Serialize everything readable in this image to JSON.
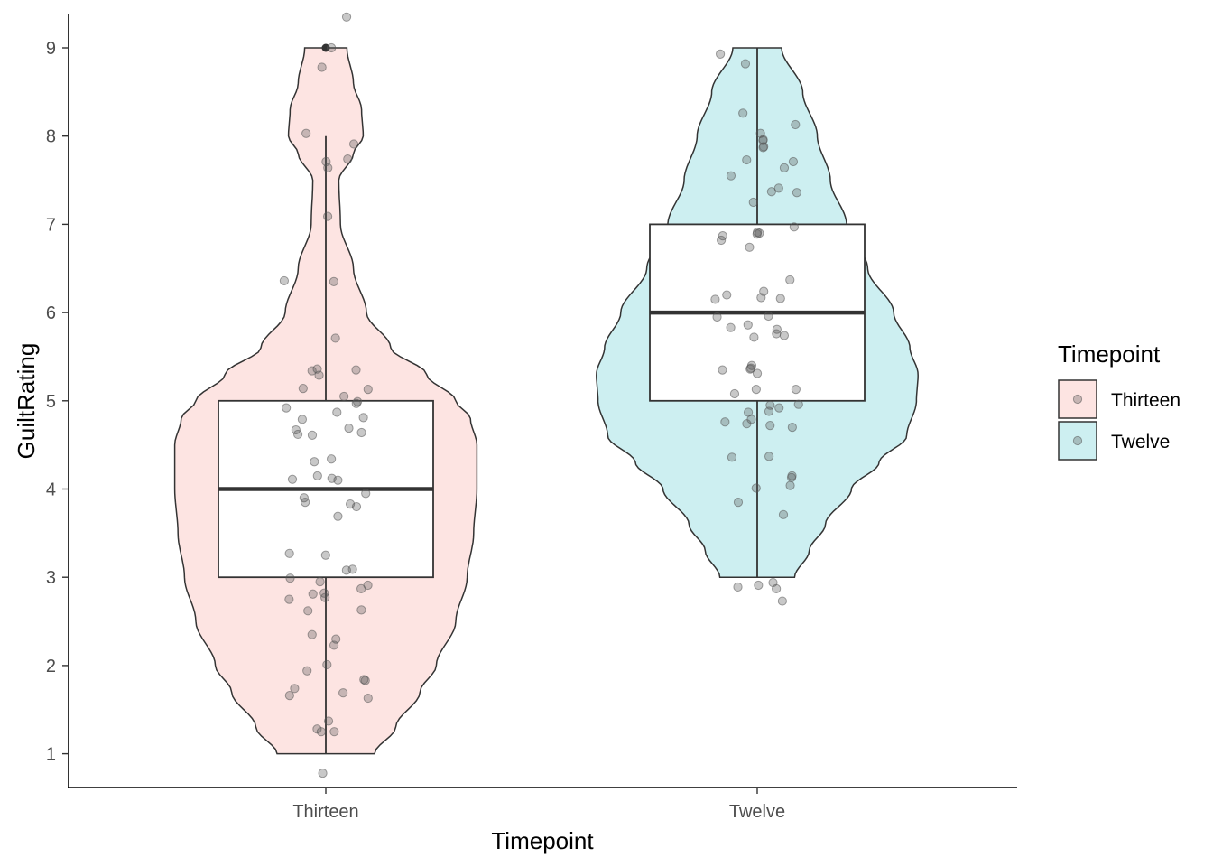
{
  "chart_data": {
    "type": "violin",
    "xlabel": "Timepoint",
    "ylabel": "GuiltRating",
    "ylim": [
      0.6,
      9.4
    ],
    "yticks": [
      1,
      2,
      3,
      4,
      5,
      6,
      7,
      8,
      9
    ],
    "categories": [
      "Thirteen",
      "Twelve"
    ],
    "legend": {
      "title": "Timepoint",
      "position": "right",
      "items": [
        {
          "label": "Thirteen",
          "color": "#F8766D"
        },
        {
          "label": "Twelve",
          "color": "#00BFC4"
        }
      ]
    },
    "colors": {
      "Thirteen": "#F8766D",
      "Twelve": "#00BFC4",
      "fill_Thirteen": "#fde4e2",
      "fill_Twelve": "#cdeff1",
      "outline": "#333333",
      "point": "#555555"
    },
    "series": [
      {
        "name": "Thirteen",
        "box": {
          "min": 1,
          "q1": 3,
          "median": 4,
          "q3": 5,
          "max": 8
        },
        "outliers": [
          9
        ],
        "violin_profile": [
          [
            1.0,
            0.3
          ],
          [
            1.3,
            0.43
          ],
          [
            1.7,
            0.58
          ],
          [
            2.0,
            0.68
          ],
          [
            2.5,
            0.8
          ],
          [
            3.0,
            0.87
          ],
          [
            3.5,
            0.91
          ],
          [
            4.0,
            0.93
          ],
          [
            4.5,
            0.93
          ],
          [
            4.8,
            0.89
          ],
          [
            5.0,
            0.8
          ],
          [
            5.3,
            0.62
          ],
          [
            5.6,
            0.4
          ],
          [
            6.0,
            0.25
          ],
          [
            6.5,
            0.17
          ],
          [
            7.0,
            0.09
          ],
          [
            7.5,
            0.08
          ],
          [
            7.8,
            0.17
          ],
          [
            8.0,
            0.23
          ],
          [
            8.3,
            0.22
          ],
          [
            8.6,
            0.17
          ],
          [
            9.0,
            0.13
          ]
        ],
        "points": [
          9.35,
          9.0,
          8.78,
          8.03,
          7.91,
          7.74,
          7.71,
          7.64,
          7.09,
          6.36,
          6.35,
          5.71,
          5.36,
          5.35,
          5.34,
          5.29,
          5.14,
          5.13,
          5.05,
          4.99,
          4.97,
          4.92,
          4.87,
          4.81,
          4.79,
          4.69,
          4.67,
          4.64,
          4.62,
          4.61,
          4.34,
          4.31,
          4.15,
          4.12,
          4.11,
          4.1,
          3.95,
          3.9,
          3.85,
          3.83,
          3.8,
          3.69,
          3.27,
          3.25,
          3.09,
          3.08,
          2.99,
          2.95,
          2.91,
          2.87,
          2.82,
          2.81,
          2.77,
          2.75,
          2.63,
          2.62,
          2.35,
          2.3,
          2.23,
          2.01,
          1.94,
          1.84,
          1.83,
          1.74,
          1.69,
          1.66,
          1.63,
          1.37,
          1.28,
          1.25,
          1.25,
          0.78
        ]
      },
      {
        "name": "Twelve",
        "box": {
          "min": 3,
          "q1": 5,
          "median": 6,
          "q3": 7,
          "max": 9
        },
        "outliers": [],
        "violin_profile": [
          [
            3.0,
            0.23
          ],
          [
            3.3,
            0.32
          ],
          [
            3.6,
            0.42
          ],
          [
            4.0,
            0.58
          ],
          [
            4.3,
            0.75
          ],
          [
            4.6,
            0.92
          ],
          [
            5.0,
            0.98
          ],
          [
            5.3,
            0.99
          ],
          [
            5.6,
            0.94
          ],
          [
            6.0,
            0.84
          ],
          [
            6.5,
            0.68
          ],
          [
            7.0,
            0.55
          ],
          [
            7.5,
            0.45
          ],
          [
            8.0,
            0.37
          ],
          [
            8.5,
            0.28
          ],
          [
            9.0,
            0.15
          ]
        ],
        "points": [
          8.93,
          8.82,
          8.26,
          8.13,
          8.03,
          7.96,
          7.95,
          7.88,
          7.87,
          7.73,
          7.71,
          7.64,
          7.55,
          7.41,
          7.37,
          7.36,
          7.25,
          6.97,
          6.91,
          6.9,
          6.89,
          6.87,
          6.82,
          6.74,
          6.37,
          6.24,
          6.2,
          6.17,
          6.16,
          6.15,
          5.96,
          5.95,
          5.86,
          5.83,
          5.81,
          5.76,
          5.74,
          5.72,
          5.4,
          5.37,
          5.36,
          5.35,
          5.31,
          5.13,
          5.13,
          5.08,
          4.96,
          4.95,
          4.92,
          4.88,
          4.87,
          4.79,
          4.76,
          4.74,
          4.72,
          4.7,
          4.37,
          4.36,
          4.15,
          4.13,
          4.04,
          4.01,
          3.85,
          3.71,
          2.94,
          2.91,
          2.89,
          2.87,
          2.73
        ]
      }
    ]
  }
}
